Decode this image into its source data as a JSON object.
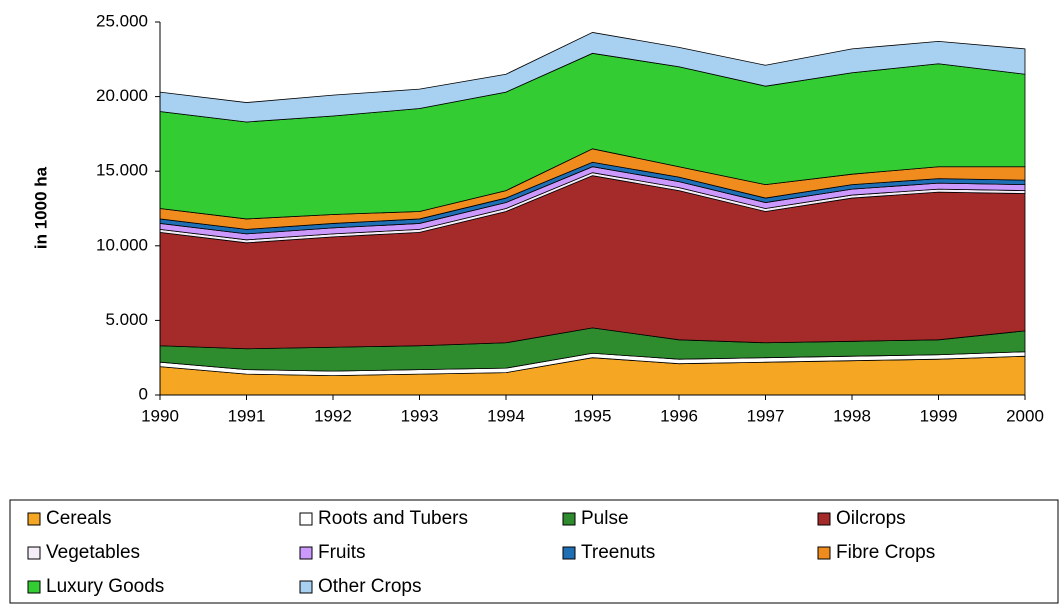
{
  "chart_data": {
    "type": "stacked_area",
    "y_label": "in 1000 ha",
    "x": [
      1990,
      1991,
      1992,
      1993,
      1994,
      1995,
      1996,
      1997,
      1998,
      1999,
      2000
    ],
    "xlim": [
      1990,
      2000
    ],
    "xticks": [
      1990,
      1991,
      1992,
      1993,
      1994,
      1995,
      1996,
      1997,
      1998,
      1999,
      2000
    ],
    "ylim": [
      0,
      25000
    ],
    "yticks": [
      0,
      {
        "value": 5000,
        "label": "5.000"
      },
      {
        "value": 10000,
        "label": "10.000"
      },
      {
        "value": 15000,
        "label": "15.000"
      },
      {
        "value": 20000,
        "label": "20.000"
      },
      {
        "value": 25000,
        "label": "25.000"
      }
    ],
    "series": [
      {
        "name": "Cereals",
        "color": "#f5a623",
        "values": [
          1900,
          1400,
          1300,
          1400,
          1500,
          2500,
          2100,
          2200,
          2300,
          2400,
          2600
        ]
      },
      {
        "name": "Roots and Tubers",
        "color": "#ffffff",
        "values": [
          300,
          300,
          300,
          300,
          300,
          300,
          300,
          300,
          300,
          300,
          300
        ]
      },
      {
        "name": "Pulse",
        "color": "#2e8b2e",
        "values": [
          1100,
          1400,
          1600,
          1600,
          1700,
          1700,
          1300,
          1000,
          1000,
          1000,
          1400
        ]
      },
      {
        "name": "Oilcrops",
        "color": "#a52a2a",
        "values": [
          7600,
          7100,
          7400,
          7600,
          8800,
          10200,
          10000,
          8800,
          9600,
          9900,
          9200
        ]
      },
      {
        "name": "Vegetables",
        "color": "#f4ecf7",
        "values": [
          200,
          200,
          200,
          200,
          200,
          200,
          200,
          200,
          200,
          200,
          200
        ]
      },
      {
        "name": "Fruits",
        "color": "#cc99ff",
        "values": [
          400,
          400,
          400,
          400,
          400,
          400,
          400,
          400,
          400,
          400,
          400
        ]
      },
      {
        "name": "Treenuts",
        "color": "#1f6fb5",
        "values": [
          300,
          300,
          300,
          300,
          300,
          300,
          300,
          300,
          300,
          300,
          300
        ]
      },
      {
        "name": "Fibre Crops",
        "color": "#f08c1e",
        "values": [
          700,
          700,
          600,
          500,
          500,
          900,
          700,
          900,
          700,
          800,
          900
        ]
      },
      {
        "name": "Luxury Goods",
        "color": "#33cc33",
        "values": [
          6500,
          6500,
          6600,
          6900,
          6600,
          6400,
          6700,
          6600,
          6800,
          6900,
          6200
        ]
      },
      {
        "name": "Other Crops",
        "color": "#a8d0f0",
        "values": [
          1300,
          1300,
          1400,
          1300,
          1200,
          1400,
          1300,
          1400,
          1600,
          1500,
          1700
        ]
      }
    ]
  }
}
